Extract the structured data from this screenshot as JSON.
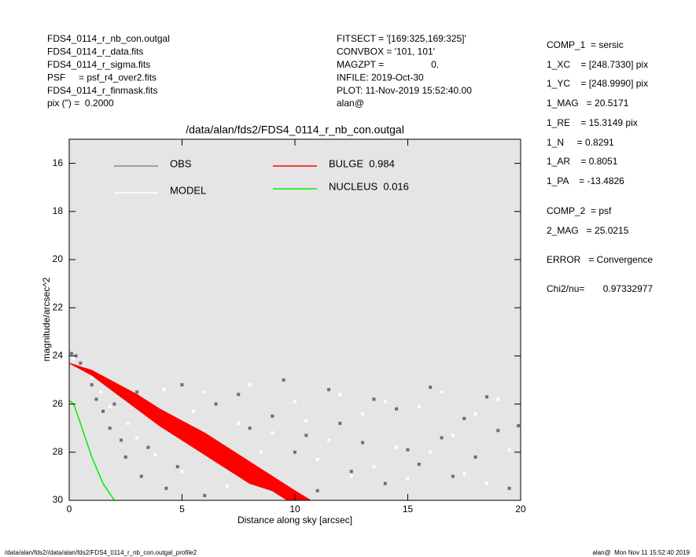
{
  "header": {
    "left": [
      "FDS4_0114_r_nb_con.outgal",
      "FDS4_0114_r_data.fits",
      "FDS4_0114_r_sigma.fits",
      "PSF     = psf_r4_over2.fits",
      "FDS4_0114_r_finmask.fits",
      "pix (\") =  0.2000"
    ],
    "middle": [
      "FITSECT = '[169:325,169:325]'",
      "CONVBOX = '101, 101'",
      "MAGZPT =                  0.",
      "INFILE: 2019-Oct-30",
      "PLOT: 11-Nov-2019 15:52:40.00",
      "alan@"
    ],
    "right": [
      "COMP_1  = sersic",
      "1_XC    = [248.7330] pix",
      "1_YC    = [248.9990] pix",
      "1_MAG   = 20.5171",
      "1_RE    = 15.3149 pix",
      "1_N     = 0.8291",
      "1_AR    = 0.8051",
      "1_PA    = -13.4826",
      "COMP_2  = psf",
      "2_MAG   = 25.0215",
      "ERROR   = Convergence",
      "Chi2/nu=       0.97332977"
    ]
  },
  "footer": {
    "left": "/data/alan/fds2//data/alan/fds2/FDS4_0114_r_nb_con.outgal_profile2",
    "right": "alan@  Mon Nov 11 15:52:40 2019"
  },
  "chart_data": {
    "type": "scatter",
    "title": "/data/alan/fds2/FDS4_0114_r_nb_con.outgal",
    "x_label": "Distance along sky [arcsec]",
    "y_label": "magnitude/arcsec^2",
    "xlim": [
      0,
      20
    ],
    "xticks": [
      0,
      5,
      10,
      15,
      20
    ],
    "ylim": [
      15,
      30
    ],
    "yticks": [
      16,
      18,
      20,
      22,
      24,
      26,
      28,
      30
    ],
    "y_inverted": true,
    "background": "#e5e5e5",
    "series": [
      {
        "name": "OBS",
        "mode": "markers",
        "color": "#6e6e6e",
        "x": [
          0.1,
          0.3,
          0.5,
          0.8,
          1.0,
          1.2,
          1.5,
          1.8,
          2.0,
          2.3,
          2.5,
          3.0,
          3.2,
          3.5,
          4.0,
          4.3,
          4.8,
          5.0,
          5.5,
          6.0,
          6.5,
          7.0,
          7.5,
          8.0,
          8.5,
          9.0,
          9.5,
          10.0,
          10.5,
          11.0,
          11.5,
          12.0,
          12.5,
          13.0,
          13.5,
          14.0,
          14.5,
          15.0,
          15.5,
          16.0,
          16.5,
          17.0,
          17.5,
          18.0,
          18.5,
          19.0,
          19.5,
          19.9
        ],
        "values": [
          23.9,
          24.0,
          24.3,
          24.6,
          25.2,
          25.8,
          26.3,
          27.0,
          26.0,
          27.5,
          28.2,
          25.5,
          29.0,
          27.8,
          26.4,
          29.5,
          28.6,
          25.2,
          27.2,
          29.8,
          26.0,
          28.4,
          25.6,
          27.0,
          29.2,
          26.5,
          25.0,
          28.0,
          27.3,
          29.6,
          25.4,
          26.8,
          28.8,
          27.6,
          25.8,
          29.3,
          26.2,
          27.9,
          28.5,
          25.3,
          27.4,
          29.0,
          26.6,
          28.2,
          25.7,
          27.1,
          29.5,
          26.9
        ]
      },
      {
        "name": "MODEL",
        "mode": "markers",
        "color": "#ffffff",
        "x": [
          0.2,
          0.6,
          1.0,
          1.4,
          1.8,
          2.2,
          2.6,
          3.0,
          3.4,
          3.8,
          4.2,
          4.6,
          5.0,
          5.5,
          6.0,
          6.5,
          7.0,
          7.5,
          8.0,
          8.5,
          9.0,
          9.5,
          10.0,
          10.5,
          11.0,
          11.5,
          12.0,
          12.5,
          13.0,
          13.5,
          14.0,
          14.5,
          15.0,
          15.5,
          16.0,
          16.5,
          17.0,
          17.5,
          18.0,
          18.5,
          19.0,
          19.5
        ],
        "values": [
          24.1,
          24.5,
          24.9,
          25.5,
          26.1,
          25.3,
          26.8,
          27.4,
          26.0,
          28.1,
          25.4,
          27.0,
          28.8,
          26.3,
          25.5,
          27.7,
          29.4,
          26.8,
          25.2,
          28.0,
          27.2,
          29.7,
          25.9,
          26.7,
          28.3,
          27.5,
          25.6,
          29.0,
          26.4,
          28.6,
          25.9,
          27.8,
          29.1,
          26.1,
          28.0,
          25.5,
          27.3,
          28.9,
          26.4,
          29.3,
          25.8,
          27.9
        ]
      },
      {
        "name": "BULGE  0.984",
        "mode": "band",
        "color": "#ff0000",
        "x": [
          0,
          1,
          2,
          3,
          4,
          5,
          6,
          7,
          8,
          9,
          10,
          10.7
        ],
        "values": [
          24.3,
          24.6,
          25.1,
          25.6,
          26.2,
          26.7,
          27.2,
          27.8,
          28.4,
          29.0,
          29.6,
          30.0
        ],
        "values_lower": [
          24.3,
          24.8,
          25.5,
          26.2,
          26.9,
          27.5,
          28.1,
          28.7,
          29.3,
          29.6,
          30.2,
          30.6
        ]
      },
      {
        "name": "NUCLEUS  0.016",
        "mode": "line",
        "color": "#00ee00",
        "x": [
          0,
          0.2,
          0.5,
          1.0,
          1.5,
          2.0
        ],
        "values": [
          25.85,
          26.0,
          26.8,
          28.2,
          29.3,
          30.0
        ]
      }
    ]
  }
}
